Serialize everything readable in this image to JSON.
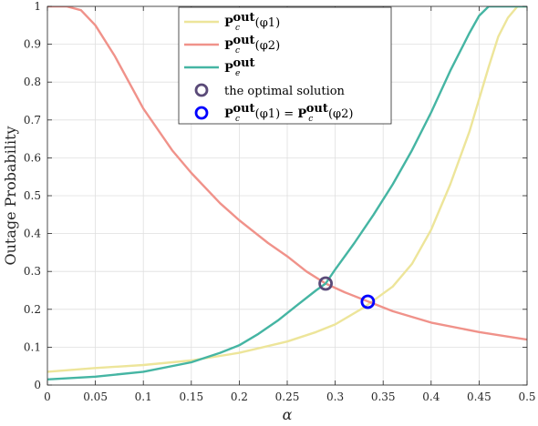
{
  "chart_data": {
    "type": "line",
    "xlabel": "α",
    "ylabel": "Outage Probability",
    "xlim": [
      0,
      0.5
    ],
    "ylim": [
      0,
      1
    ],
    "x_ticks": [
      0,
      0.05,
      0.1,
      0.15,
      0.2,
      0.25,
      0.3,
      0.35,
      0.4,
      0.45,
      0.5
    ],
    "x_tick_labels": [
      "0",
      "0.05",
      "0.1",
      "0.15",
      "0.2",
      "0.25",
      "0.3",
      "0.35",
      "0.4",
      "0.45",
      "0.5"
    ],
    "y_ticks": [
      0,
      0.1,
      0.2,
      0.3,
      0.4,
      0.5,
      0.6,
      0.7,
      0.8,
      0.9,
      1
    ],
    "y_tick_labels": [
      "0",
      "0.1",
      "0.2",
      "0.3",
      "0.4",
      "0.5",
      "0.6",
      "0.7",
      "0.8",
      "0.9",
      "1"
    ],
    "grid": true,
    "legend_position": "top-center",
    "series": [
      {
        "name": "Pc out(φ1)",
        "legend_main": "P",
        "legend_sub": "c",
        "legend_sup": "out",
        "legend_suffix": "(φ1)",
        "color": "#ede59a",
        "x": [
          0,
          0.05,
          0.1,
          0.15,
          0.2,
          0.25,
          0.28,
          0.3,
          0.33,
          0.36,
          0.38,
          0.4,
          0.42,
          0.44,
          0.46,
          0.47,
          0.48,
          0.49,
          0.5
        ],
        "y": [
          0.035,
          0.045,
          0.053,
          0.065,
          0.085,
          0.115,
          0.14,
          0.16,
          0.205,
          0.26,
          0.32,
          0.41,
          0.53,
          0.67,
          0.84,
          0.92,
          0.97,
          1.0,
          1.0
        ]
      },
      {
        "name": "Pc out(φ2)",
        "legend_main": "P",
        "legend_sub": "c",
        "legend_sup": "out",
        "legend_suffix": "(φ2)",
        "color": "#f0928a",
        "x": [
          0,
          0.02,
          0.035,
          0.05,
          0.07,
          0.1,
          0.13,
          0.15,
          0.18,
          0.2,
          0.23,
          0.25,
          0.27,
          0.29,
          0.31,
          0.335,
          0.36,
          0.4,
          0.45,
          0.5
        ],
        "y": [
          1.0,
          1.0,
          0.99,
          0.95,
          0.87,
          0.73,
          0.62,
          0.56,
          0.48,
          0.435,
          0.375,
          0.34,
          0.3,
          0.268,
          0.245,
          0.22,
          0.195,
          0.165,
          0.14,
          0.12
        ]
      },
      {
        "name": "Pe out",
        "legend_main": "P",
        "legend_sub": "e",
        "legend_sup": "out",
        "legend_suffix": "",
        "color": "#45b5a3",
        "x": [
          0,
          0.05,
          0.1,
          0.15,
          0.18,
          0.2,
          0.22,
          0.24,
          0.26,
          0.28,
          0.29,
          0.3,
          0.32,
          0.34,
          0.36,
          0.38,
          0.4,
          0.42,
          0.44,
          0.45,
          0.46,
          0.48,
          0.5
        ],
        "y": [
          0.015,
          0.022,
          0.035,
          0.06,
          0.085,
          0.105,
          0.135,
          0.17,
          0.21,
          0.25,
          0.268,
          0.305,
          0.375,
          0.45,
          0.53,
          0.62,
          0.72,
          0.83,
          0.93,
          0.975,
          1.0,
          1.0,
          1.0
        ]
      }
    ],
    "markers": [
      {
        "name": "the optimal solution",
        "legend_text": "the optimal solution",
        "x": 0.29,
        "y": 0.268,
        "color": "#5a4a78"
      },
      {
        "name": "Pc out(φ1) = Pc out(φ2)",
        "legend_parts": [
          "P",
          "c",
          "out",
          "(φ1) = ",
          "P",
          "c",
          "out",
          "(φ2)"
        ],
        "x": 0.334,
        "y": 0.22,
        "color": "#0000ff"
      }
    ]
  }
}
